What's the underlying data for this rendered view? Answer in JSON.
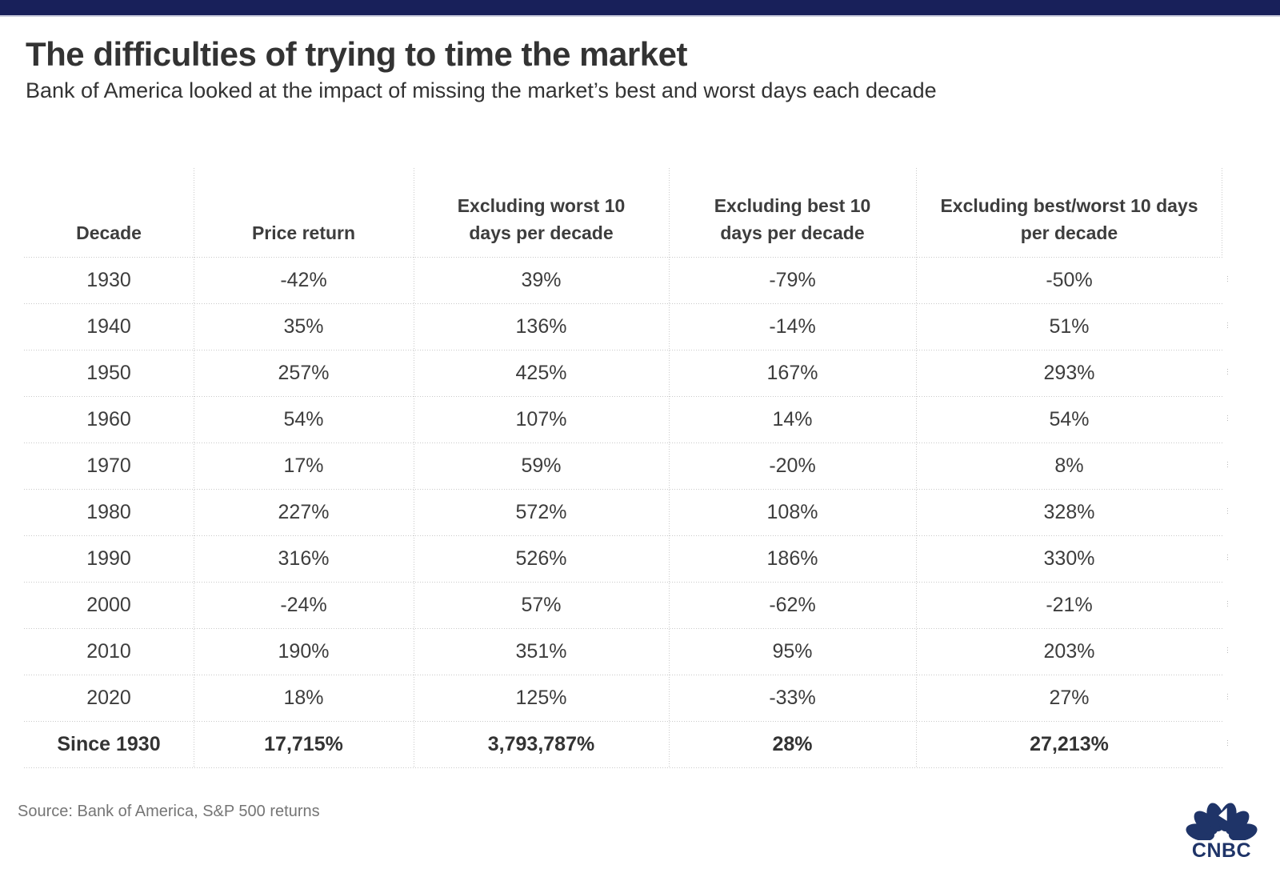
{
  "header": {
    "title": "The difficulties of trying to time the market",
    "subtitle": "Bank of America looked at the impact of missing the market’s best and worst days each decade"
  },
  "footer": {
    "source": "Source: Bank of America, S&P 500 returns",
    "brand": "CNBC"
  },
  "colors": {
    "topbar_navy": "#18205a",
    "logo_navy": "#1f3468",
    "grid_line": "#c9c9c9",
    "title_text": "#333333",
    "cell_text": "#3d3d3d",
    "source_text": "#757575"
  },
  "chart_data": {
    "type": "table",
    "title": "The difficulties of trying to time the market",
    "subtitle": "Bank of America looked at the impact of missing the market’s best and worst days each decade",
    "source": "Source: Bank of America, S&P 500 returns",
    "columns": [
      "Decade",
      "Price return",
      "Excluding worst 10 days per decade",
      "Excluding best 10 days per decade",
      "Excluding best/worst 10 days per decade"
    ],
    "rows": [
      [
        "1930",
        "-42%",
        "39%",
        "-79%",
        "-50%"
      ],
      [
        "1940",
        "35%",
        "136%",
        "-14%",
        "51%"
      ],
      [
        "1950",
        "257%",
        "425%",
        "167%",
        "293%"
      ],
      [
        "1960",
        "54%",
        "107%",
        "14%",
        "54%"
      ],
      [
        "1970",
        "17%",
        "59%",
        "-20%",
        "8%"
      ],
      [
        "1980",
        "227%",
        "572%",
        "108%",
        "328%"
      ],
      [
        "1990",
        "316%",
        "526%",
        "186%",
        "330%"
      ],
      [
        "2000",
        "-24%",
        "57%",
        "-62%",
        "-21%"
      ],
      [
        "2010",
        "190%",
        "351%",
        "95%",
        "203%"
      ],
      [
        "2020",
        "18%",
        "125%",
        "-33%",
        "27%"
      ]
    ],
    "total_row": [
      "Since 1930",
      "17,715%",
      "3,793,787%",
      "28%",
      "27,213%"
    ]
  }
}
